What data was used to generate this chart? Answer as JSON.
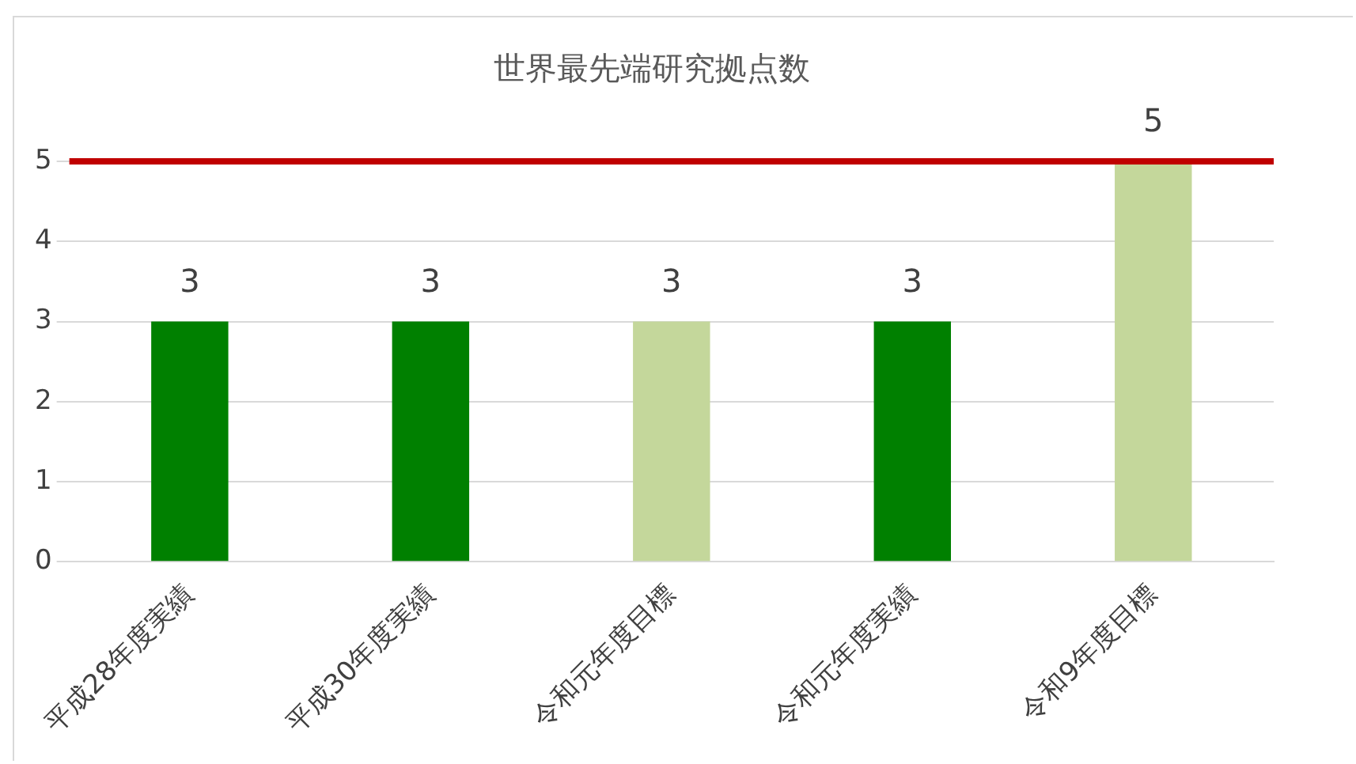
{
  "chart_data": {
    "type": "bar",
    "title": "世界最先端研究拠点数",
    "categories": [
      "平成28年度実績",
      "平成30年度実績",
      "令和元年度目標",
      "令和元年度実績",
      "令和9年度目標"
    ],
    "values": [
      3,
      3,
      3,
      3,
      5
    ],
    "colors": [
      "#008000",
      "#008000",
      "#c4d79b",
      "#008000",
      "#c4d79b"
    ],
    "ylim": [
      0,
      5
    ],
    "yticks": [
      0,
      1,
      2,
      3,
      4,
      5
    ],
    "grid": "y",
    "legend": false,
    "data_labels": true,
    "ref_lines": [
      {
        "axis": "y",
        "value": 5,
        "color": "#c00000"
      }
    ]
  }
}
